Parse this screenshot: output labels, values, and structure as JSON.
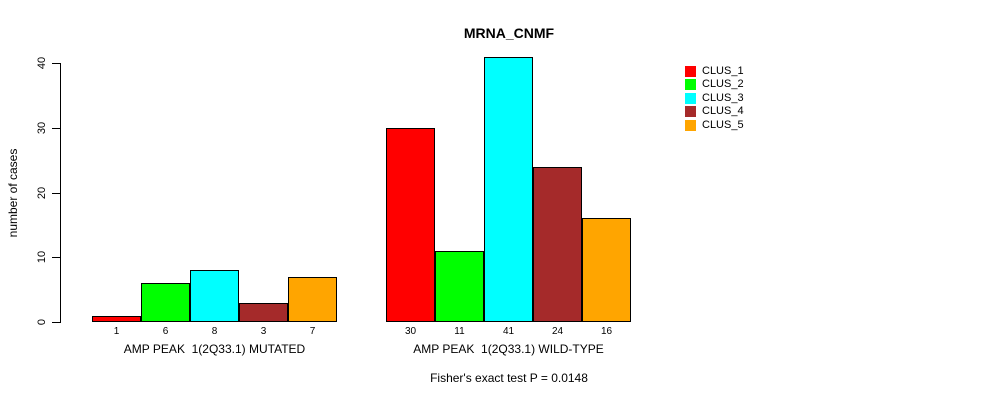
{
  "chart_data": {
    "type": "bar",
    "title": "MRNA_CNMF",
    "ylabel": "number of cases",
    "xlabel": "",
    "ylim": [
      0,
      41
    ],
    "yticks": [
      0,
      10,
      20,
      30,
      40
    ],
    "grid": false,
    "legend_position": "top-right",
    "categories": [
      "AMP PEAK  1(2Q33.1) MUTATED",
      "AMP PEAK  1(2Q33.1) WILD-TYPE"
    ],
    "series": [
      {
        "name": "CLUS_1",
        "color": "#FF0000",
        "values": [
          1,
          30
        ]
      },
      {
        "name": "CLUS_2",
        "color": "#00FF00",
        "values": [
          6,
          11
        ]
      },
      {
        "name": "CLUS_3",
        "color": "#00FFFF",
        "values": [
          8,
          41
        ]
      },
      {
        "name": "CLUS_4",
        "color": "#A52A2A",
        "values": [
          3,
          24
        ]
      },
      {
        "name": "CLUS_5",
        "color": "#FFA500",
        "values": [
          7,
          16
        ]
      }
    ],
    "bar_value_labels": [
      [
        1,
        6,
        8,
        3,
        7
      ],
      [
        30,
        11,
        41,
        24,
        16
      ]
    ],
    "annotation": "Fisher's exact test P = 0.0148"
  }
}
